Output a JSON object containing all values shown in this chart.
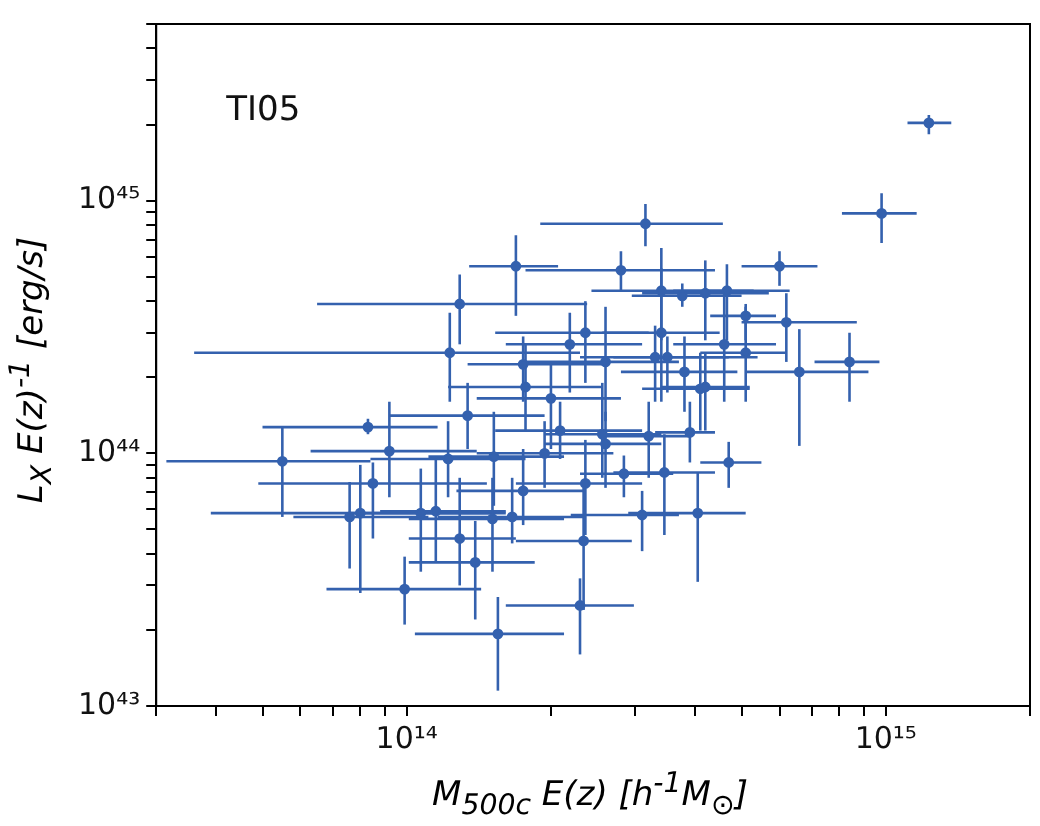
{
  "chart_data": {
    "type": "scatter",
    "xlabel": "M$_{500c}$ E(z) [h$^{-1}$M$_{⊙}$]",
    "ylabel": "L$_{X}$ E(z)$^{-1}$ [erg/s]",
    "annotations": [
      "TI05"
    ],
    "log": "xy",
    "grid": false,
    "marker": "circle",
    "xlim": [
      30000000000000.0,
      2000000000000000.0
    ],
    "ylim": [
      1e+43,
      5e+45
    ],
    "xticks": [
      {
        "value": 30000000000000.0,
        "label": null
      },
      {
        "value": 40000000000000.0,
        "label": null
      },
      {
        "value": 50000000000000.0,
        "label": null
      },
      {
        "value": 60000000000000.0,
        "label": null
      },
      {
        "value": 70000000000000.0,
        "label": null
      },
      {
        "value": 80000000000000.0,
        "label": null
      },
      {
        "value": 90000000000000.0,
        "label": null
      },
      {
        "value": 100000000000000.0,
        "label": "10¹⁴"
      },
      {
        "value": 200000000000000.0,
        "label": null
      },
      {
        "value": 300000000000000.0,
        "label": null
      },
      {
        "value": 400000000000000.0,
        "label": null
      },
      {
        "value": 500000000000000.0,
        "label": null
      },
      {
        "value": 600000000000000.0,
        "label": null
      },
      {
        "value": 700000000000000.0,
        "label": null
      },
      {
        "value": 800000000000000.0,
        "label": null
      },
      {
        "value": 900000000000000.0,
        "label": null
      },
      {
        "value": 1000000000000000.0,
        "label": "10¹⁵"
      },
      {
        "value": 2000000000000000.0,
        "label": null
      }
    ],
    "yticks": [
      {
        "value": 1e+43,
        "label": "10⁴³"
      },
      {
        "value": 2e+43,
        "label": null
      },
      {
        "value": 3e+43,
        "label": null
      },
      {
        "value": 4e+43,
        "label": null
      },
      {
        "value": 5e+43,
        "label": null
      },
      {
        "value": 6e+43,
        "label": null
      },
      {
        "value": 7e+43,
        "label": null
      },
      {
        "value": 8e+43,
        "label": null
      },
      {
        "value": 9e+43,
        "label": null
      },
      {
        "value": 1e+44,
        "label": "10⁴⁴"
      },
      {
        "value": 2e+44,
        "label": null
      },
      {
        "value": 3e+44,
        "label": null
      },
      {
        "value": 4e+44,
        "label": null
      },
      {
        "value": 5e+44,
        "label": null
      },
      {
        "value": 6e+44,
        "label": null
      },
      {
        "value": 7e+44,
        "label": null
      },
      {
        "value": 8e+44,
        "label": null
      },
      {
        "value": 9e+44,
        "label": null
      },
      {
        "value": 1e+45,
        "label": "10⁴⁵"
      },
      {
        "value": 2e+45,
        "label": null
      },
      {
        "value": 3e+45,
        "label": null
      },
      {
        "value": 4e+45,
        "label": null
      },
      {
        "value": 5e+45,
        "label": null
      }
    ],
    "series": [
      {
        "color": "#3461ae",
        "x": [
          1230000000000000.0,
          980000000000000.0,
          315000000000000.0,
          169000000000000.0,
          600000000000000.0,
          280000000000000.0,
          129000000000000.0,
          340000000000000.0,
          376000000000000.0,
          420000000000000.0,
          466000000000000.0,
          510000000000000.0,
          620000000000000.0,
          840000000000000.0,
          660000000000000.0,
          123000000000000.0,
          236000000000000.0,
          219000000000000.0,
          175000000000000.0,
          260000000000000.0,
          340000000000000.0,
          330000000000000.0,
          350000000000000.0,
          460000000000000.0,
          510000000000000.0,
          380000000000000.0,
          410000000000000.0,
          470000000000000.0,
          405000000000000.0,
          310000000000000.0,
          345000000000000.0,
          284000000000000.0,
          390000000000000.0,
          420000000000000.0,
          234000000000000.0,
          230000000000000.0,
          320000000000000.0,
          260000000000000.0,
          155000000000000.0,
          99000000000000.0,
          55000000000000.0,
          83000000000000.0,
          92000000000000.0,
          85000000000000.0,
          80000000000000.0,
          76000000000000.0,
          129000000000000.0,
          139000000000000.0,
          107000000000000.0,
          115000000000000.0,
          122000000000000.0,
          134000000000000.0,
          152000000000000.0,
          175000000000000.0,
          151000000000000.0,
          166000000000000.0,
          177000000000000.0,
          200000000000000.0,
          209000000000000.0,
          256000000000000.0,
          236000000000000.0,
          194000000000000.0
        ],
        "values": [
          2.03e+45,
          8.9e+44,
          8.1e+44,
          5.5e+44,
          5.5e+44,
          5.3e+44,
          3.9e+44,
          4.4e+44,
          4.2e+44,
          4.3e+44,
          4.4e+44,
          3.5e+44,
          3.3e+44,
          2.3e+44,
          2.1e+44,
          2.5e+44,
          3e+44,
          2.7e+44,
          2.25e+44,
          2.3e+44,
          3e+44,
          2.4e+44,
          2.4e+44,
          2.7e+44,
          2.5e+44,
          2.1e+44,
          1.8e+44,
          9.2e+43,
          5.8e+43,
          5.7e+43,
          8.4e+43,
          8.3e+43,
          1.21e+44,
          1.83e+44,
          4.5e+43,
          2.5e+43,
          1.17e+44,
          1.09e+44,
          1.93e+43,
          2.9e+43,
          9.3e+43,
          1.27e+44,
          1.02e+44,
          7.6e+43,
          5.8e+43,
          5.6e+43,
          4.6e+43,
          3.7e+43,
          5.8e+43,
          5.9e+43,
          9.5e+43,
          1.41e+44,
          9.7e+43,
          7.1e+43,
          5.5e+43,
          5.6e+43,
          1.83e+44,
          1.65e+44,
          1.23e+44,
          1.19e+44,
          7.6e+43,
          1e+44
        ],
        "xerrors": [
          [
            1110000000000000.0,
            1370000000000000.0
          ],
          [
            810000000000000.0,
            1160000000000000.0
          ],
          [
            190000000000000.0,
            457000000000000.0
          ],
          [
            135000000000000.0,
            207000000000000.0
          ],
          [
            500000000000000.0,
            720000000000000.0
          ],
          [
            177000000000000.0,
            440000000000000.0
          ],
          [
            65000000000000.0,
            238000000000000.0
          ],
          [
            243000000000000.0,
            530000000000000.0
          ],
          [
            295000000000000.0,
            500000000000000.0
          ],
          [
            310000000000000.0,
            570000000000000.0
          ],
          [
            360000000000000.0,
            630000000000000.0
          ],
          [
            430000000000000.0,
            590000000000000.0
          ],
          [
            500000000000000.0,
            870000000000000.0
          ],
          [
            710000000000000.0,
            970000000000000.0
          ],
          [
            510000000000000.0,
            920000000000000.0
          ],
          [
            36000000000000.0,
            230000000000000.0
          ],
          [
            153000000000000.0,
            320000000000000.0
          ],
          [
            161000000000000.0,
            310000000000000.0
          ],
          [
            134000000000000.0,
            256000000000000.0
          ],
          [
            177000000000000.0,
            370000000000000.0
          ],
          [
            256000000000000.0,
            450000000000000.0
          ],
          [
            230000000000000.0,
            540000000000000.0
          ],
          [
            270000000000000.0,
            470000000000000.0
          ],
          [
            360000000000000.0,
            590000000000000.0
          ],
          [
            410000000000000.0,
            620000000000000.0
          ],
          [
            280000000000000.0,
            490000000000000.0
          ],
          [
            310000000000000.0,
            520000000000000.0
          ],
          [
            410000000000000.0,
            550000000000000.0
          ],
          [
            290000000000000.0,
            510000000000000.0
          ],
          [
            220000000000000.0,
            370000000000000.0
          ],
          [
            270000000000000.0,
            440000000000000.0
          ],
          [
            230000000000000.0,
            360000000000000.0
          ],
          [
            330000000000000.0,
            440000000000000.0
          ],
          [
            340000000000000.0,
            520000000000000.0
          ],
          [
            169000000000000.0,
            295000000000000.0
          ],
          [
            161000000000000.0,
            298000000000000.0
          ],
          [
            256000000000000.0,
            390000000000000.0
          ],
          [
            194000000000000.0,
            340000000000000.0
          ],
          [
            104000000000000.0,
            213000000000000.0
          ],
          [
            68000000000000.0,
            143000000000000.0
          ],
          [
            31500000000000.0,
            84000000000000.0
          ],
          [
            50000000000000.0,
            116000000000000.0
          ],
          [
            63000000000000.0,
            140000000000000.0
          ],
          [
            49000000000000.0,
            147000000000000.0
          ],
          [
            39000000000000.0,
            161000000000000.0
          ],
          [
            58000000000000.0,
            111000000000000.0
          ],
          [
            101000000000000.0,
            169000000000000.0
          ],
          [
            101000000000000.0,
            185000000000000.0
          ],
          [
            76000000000000.0,
            153000000000000.0
          ],
          [
            88000000000000.0,
            161000000000000.0
          ],
          [
            84000000000000.0,
            177000000000000.0
          ],
          [
            92000000000000.0,
            194000000000000.0
          ],
          [
            111000000000000.0,
            213000000000000.0
          ],
          [
            127000000000000.0,
            234000000000000.0
          ],
          [
            101000000000000.0,
            213000000000000.0
          ],
          [
            116000000000000.0,
            234000000000000.0
          ],
          [
            122000000000000.0,
            256000000000000.0
          ],
          [
            140000000000000.0,
            280000000000000.0
          ],
          [
            153000000000000.0,
            310000000000000.0
          ],
          [
            194000000000000.0,
            340000000000000.0
          ],
          [
            169000000000000.0,
            310000000000000.0
          ],
          [
            140000000000000.0,
            270000000000000.0
          ]
        ],
        "errors": [
          [
            1.83e+45,
            2.18e+45
          ],
          [
            6.8e+44,
            1.07e+45
          ],
          [
            6.6e+44,
            9.7e+44
          ],
          [
            3.5e+44,
            7.3e+44
          ],
          [
            4.6e+44,
            6.3e+44
          ],
          [
            4.4e+44,
            6.3e+44
          ],
          [
            2.7e+44,
            5.1e+44
          ],
          [
            2.8e+44,
            6.5e+44
          ],
          [
            3.8e+44,
            4.7e+44
          ],
          [
            2.8e+44,
            5.8e+44
          ],
          [
            2.8e+44,
            5.6e+44
          ],
          [
            2.8e+44,
            3.9e+44
          ],
          [
            2.3e+44,
            4.3e+44
          ],
          [
            1.6e+44,
            3e+44
          ],
          [
            1.07e+44,
            3.1e+44
          ],
          [
            1.6e+44,
            3.6e+44
          ],
          [
            1.9e+44,
            4e+44
          ],
          [
            1.74e+44,
            3.6e+44
          ],
          [
            1.6e+44,
            2.9e+44
          ],
          [
            1.34e+44,
            3.8e+44
          ],
          [
            1.6e+44,
            5.4e+44
          ],
          [
            1.6e+44,
            3.2e+44
          ],
          [
            1.74e+44,
            2.9e+44
          ],
          [
            1.6e+44,
            4.5e+44
          ],
          [
            1.6e+44,
            3.8e+44
          ],
          [
            1.46e+44,
            2.9e+44
          ],
          [
            1.23e+44,
            2.5e+44
          ],
          [
            7.3e+43,
            1.11e+44
          ],
          [
            3.1e+43,
            8.4e+43
          ],
          [
            4.1e+43,
            7.1e+43
          ],
          [
            4.75e+43,
            1.19e+44
          ],
          [
            6.7e+43,
            9.8e+43
          ],
          [
            9.2e+43,
            1.6e+44
          ],
          [
            1.23e+44,
            2.5e+44
          ],
          [
            2.4e+43,
            7.3e+43
          ],
          [
            1.6e+43,
            3.2e+43
          ],
          [
            8e+43,
            1.6e+44
          ],
          [
            7.3e+43,
            1.46e+44
          ],
          [
            1.15e+43,
            2.7e+43
          ],
          [
            2.1e+43,
            3.9e+43
          ],
          [
            5.6e+43,
            1.27e+44
          ],
          [
            1.19e+44,
            1.37e+44
          ],
          [
            6.7e+43,
            1.6e+44
          ],
          [
            4.6e+43,
            9.2e+43
          ],
          [
            2.8e+43,
            9e+43
          ],
          [
            3.5e+43,
            7.7e+43
          ],
          [
            3e+43,
            8e+43
          ],
          [
            2.2e+43,
            5.4e+43
          ],
          [
            3.4e+43,
            8.7e+43
          ],
          [
            3.7e+43,
            9.5e+43
          ],
          [
            6.7e+43,
            1.34e+44
          ],
          [
            1.04e+44,
            1.9e+44
          ],
          [
            6.2e+43,
            1.46e+44
          ],
          [
            5.2e+43,
            1.04e+44
          ],
          [
            3.4e+43,
            8e+43
          ],
          [
            4.4e+43,
            8e+43
          ],
          [
            1.23e+44,
            2.7e+44
          ],
          [
            1.04e+44,
            2.25e+44
          ],
          [
            9.5e+43,
            1.6e+44
          ],
          [
            8e+43,
            1.9e+44
          ],
          [
            4.75e+43,
            1.13e+44
          ],
          [
            7.3e+43,
            1.34e+44
          ]
        ]
      }
    ]
  }
}
